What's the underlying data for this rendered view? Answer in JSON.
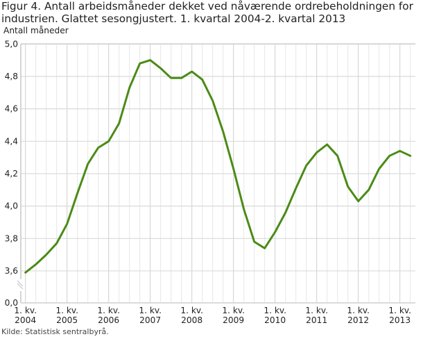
{
  "figure": {
    "title_line1": "Figur 4. Antall arbeidsmåneder dekket ved nåværende ordrebeholdningen for",
    "title_line2": "industrien. Glattet sesongjustert. 1. kvartal 2004-2. kvartal 2013",
    "y_axis_label": "Antall måneder",
    "source": "Kilde: Statistisk sentralbyrå.",
    "line_color": "#4a8b16"
  },
  "chart_data": {
    "type": "line",
    "title": "Figur 4. Antall arbeidsmåneder dekket ved nåværende ordrebeholdningen for industrien. Glattet sesongjustert. 1. kvartal 2004-2. kvartal 2013",
    "xlabel": "",
    "ylabel": "Antall måneder",
    "ylim": [
      3.6,
      5.0
    ],
    "y_axis_break": true,
    "y_ticks": [
      "0,0",
      "3,6",
      "3,8",
      "4,0",
      "4,2",
      "4,4",
      "4,6",
      "4,8",
      "5,0"
    ],
    "x_tick_labels": [
      {
        "line1": "1. kv.",
        "line2": "2004"
      },
      {
        "line1": "1. kv.",
        "line2": "2005"
      },
      {
        "line1": "1. kv.",
        "line2": "2006"
      },
      {
        "line1": "1. kv.",
        "line2": "2007"
      },
      {
        "line1": "1. kv.",
        "line2": "2008"
      },
      {
        "line1": "1. kv.",
        "line2": "2009"
      },
      {
        "line1": "1. kv.",
        "line2": "2010"
      },
      {
        "line1": "1. kv.",
        "line2": "2011"
      },
      {
        "line1": "1. kv.",
        "line2": "2012"
      },
      {
        "line1": "1. kv.",
        "line2": "2013"
      }
    ],
    "grid": true,
    "legend": null,
    "x": [
      "2004K1",
      "2004K2",
      "2004K3",
      "2004K4",
      "2005K1",
      "2005K2",
      "2005K3",
      "2005K4",
      "2006K1",
      "2006K2",
      "2006K3",
      "2006K4",
      "2007K1",
      "2007K2",
      "2007K3",
      "2007K4",
      "2008K1",
      "2008K2",
      "2008K3",
      "2008K4",
      "2009K1",
      "2009K2",
      "2009K3",
      "2009K4",
      "2010K1",
      "2010K2",
      "2010K3",
      "2010K4",
      "2011K1",
      "2011K2",
      "2011K3",
      "2011K4",
      "2012K1",
      "2012K2",
      "2012K3",
      "2012K4",
      "2013K1",
      "2013K2"
    ],
    "series": [
      {
        "name": "Antall måneder",
        "values": [
          3.59,
          3.64,
          3.7,
          3.77,
          3.89,
          4.08,
          4.26,
          4.36,
          4.4,
          4.51,
          4.73,
          4.88,
          4.9,
          4.85,
          4.79,
          4.79,
          4.83,
          4.78,
          4.65,
          4.46,
          4.23,
          3.98,
          3.78,
          3.74,
          3.84,
          3.96,
          4.11,
          4.25,
          4.33,
          4.38,
          4.31,
          4.12,
          4.03,
          4.1,
          4.23,
          4.31,
          4.34,
          4.31
        ]
      }
    ]
  }
}
